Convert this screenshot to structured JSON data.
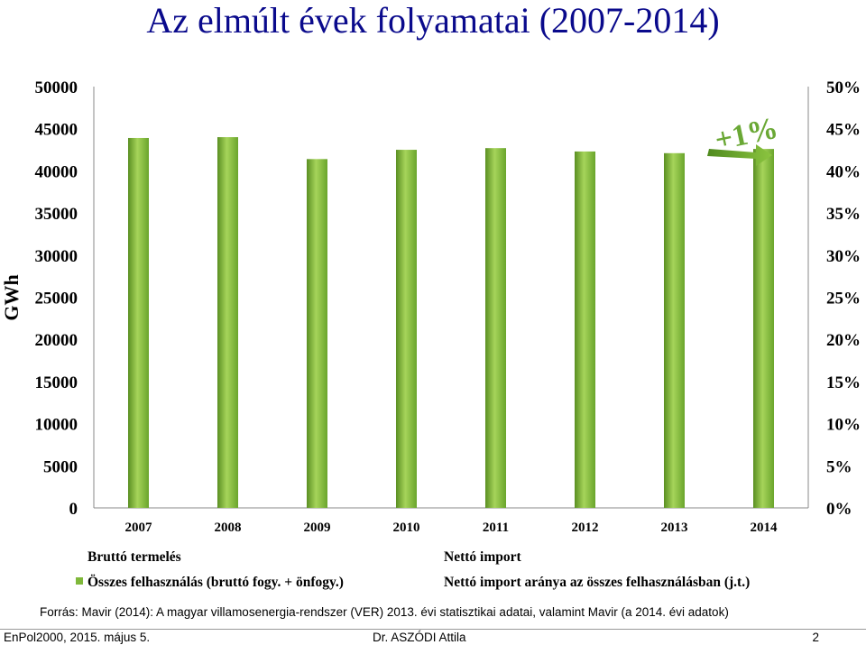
{
  "header": {
    "title": "Az elmúlt évek folyamatai (2007-2014)"
  },
  "chart_data": {
    "type": "bar",
    "categories": [
      "2007",
      "2008",
      "2009",
      "2010",
      "2011",
      "2012",
      "2013",
      "2014"
    ],
    "series": [
      {
        "name": "Összes felhasználás (bruttó fogy. + önfogy.)",
        "values": [
          43900,
          44000,
          41400,
          42500,
          42700,
          42300,
          42100,
          42600
        ],
        "color": "#7fb83a"
      }
    ],
    "ylim": [
      0,
      50000
    ],
    "y_ticks": [
      "0",
      "5000",
      "10000",
      "15000",
      "20000",
      "25000",
      "30000",
      "35000",
      "40000",
      "45000",
      "50000"
    ],
    "y2lim": [
      0,
      50
    ],
    "y2_ticks": [
      "0%",
      "5%",
      "10%",
      "15%",
      "20%",
      "25%",
      "30%",
      "35%",
      "40%",
      "45%",
      "50%"
    ],
    "ylabel": "GWh",
    "legend": [
      {
        "label": "Bruttó termelés"
      },
      {
        "label": "Nettó import"
      },
      {
        "label": "Összes felhasználás (bruttó fogy. + önfogy.)"
      },
      {
        "label": "Nettó import aránya az összes felhasználásban (j.t.)"
      }
    ],
    "annotation": "+1%",
    "grid": false
  },
  "source": "Forrás: Mavir (2014): A magyar villamosenergia-rendszer (VER) 2013. évi statisztikai adatai, valamint Mavir (a 2014. évi adatok)",
  "footer": {
    "left": "EnPol2000, 2015. május 5.",
    "center": "Dr. ASZÓDI Attila",
    "page": "2"
  }
}
